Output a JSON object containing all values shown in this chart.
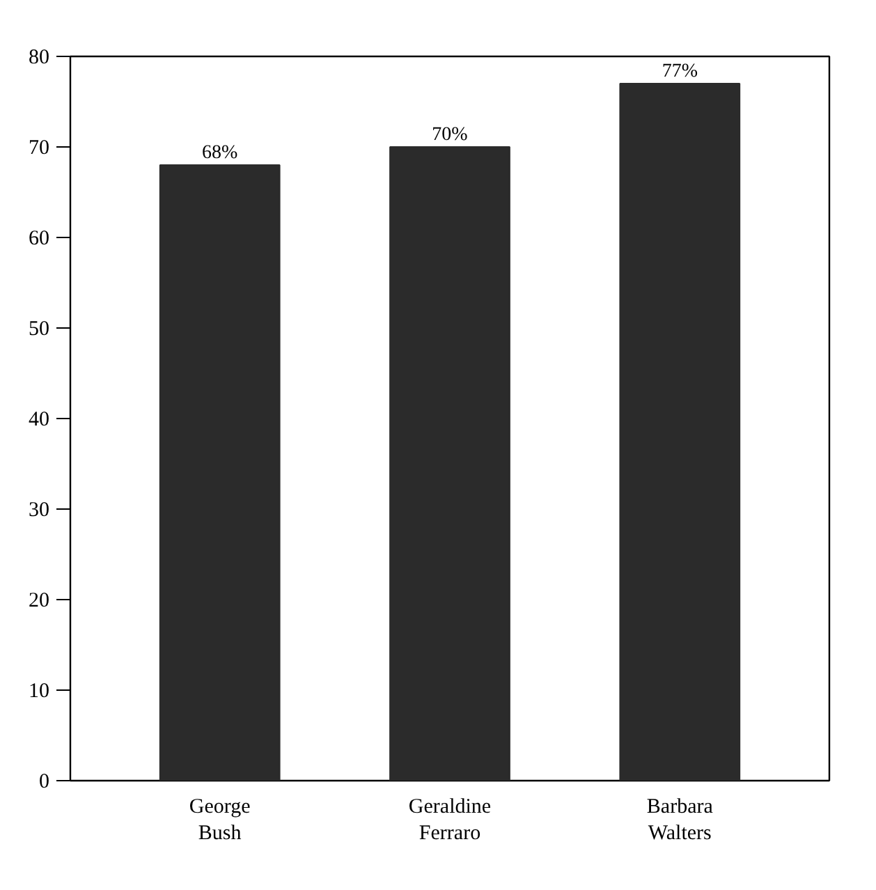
{
  "chart_data": {
    "type": "bar",
    "categories": [
      "George Bush",
      "Geraldine Ferraro",
      "Barbara Walters"
    ],
    "values": [
      68,
      70,
      77
    ],
    "value_labels": [
      "68%",
      "70%",
      "77%"
    ],
    "color": "#2b2b2b",
    "ylim": [
      0,
      80
    ],
    "yticks": [
      0,
      10,
      20,
      30,
      40,
      50,
      60,
      70,
      80
    ],
    "grid": false
  }
}
